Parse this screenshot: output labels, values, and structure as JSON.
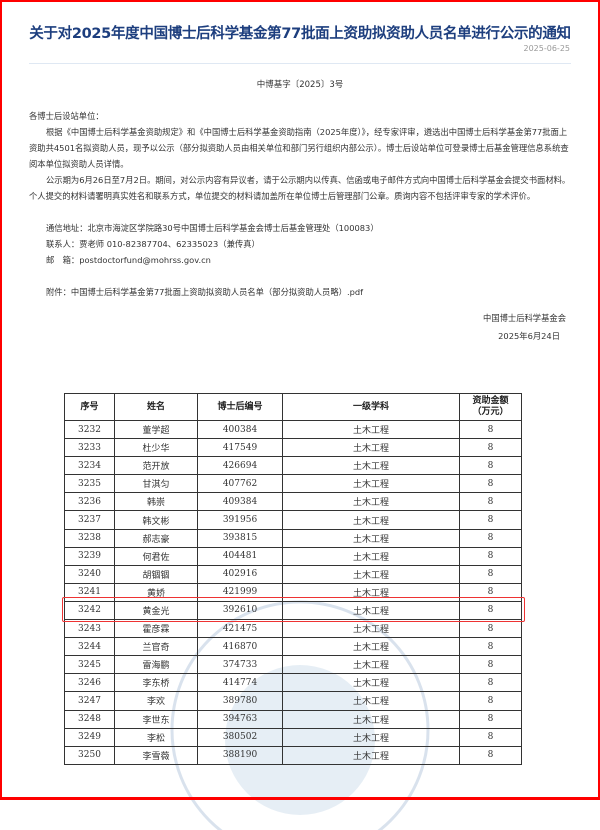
{
  "title": "关于对2025年度中国博士后科学基金第77批面上资助拟资助人员名单进行公示的通知",
  "date": "2025-06-25",
  "doc_number": "中博基字〔2025〕3号",
  "salutation": "各博士后设站单位：",
  "paragraphs": [
    "根据《中国博士后科学基金资助规定》和《中国博士后科学基金资助指南（2025年度）》，经专家评审，遴选出中国博士后科学基金第77批面上资助共4501名拟资助人员，现予以公示（部分拟资助人员由相关单位和部门另行组织内部公示）。博士后设站单位可登录博士后基金管理信息系统查阅本单位拟资助人员详情。",
    "公示期为6月26日至7月2日。期间，对公示内容有异议者，请于公示期内以传真、信函或电子邮件方式向中国博士后科学基金会提交书面材料。个人提交的材料请署明真实姓名和联系方式，单位提交的材料请加盖所在单位博士后管理部门公章。质询内容不包括评审专家的学术评价。"
  ],
  "contact": {
    "address": "通信地址：北京市海淀区学院路30号中国博士后科学基金会博士后基金管理处（100083）",
    "person": "联系人：贾老师 010-82387704、62335023（兼传真）",
    "email": "邮　箱：postdoctorfund@mohrss.gov.cn"
  },
  "attachment": "附件：中国博士后科学基金第77批面上资助拟资助人员名单（部分拟资助人员略）.pdf",
  "signature": {
    "org": "中国博士后科学基金会",
    "date": "2025年6月24日"
  },
  "table": {
    "headers": [
      "序号",
      "姓名",
      "博士后编号",
      "一级学科",
      "资助金额（万元）"
    ],
    "rows": [
      [
        "3232",
        "董学超",
        "400384",
        "土木工程",
        "8"
      ],
      [
        "3233",
        "杜少华",
        "417549",
        "土木工程",
        "8"
      ],
      [
        "3234",
        "范开放",
        "426694",
        "土木工程",
        "8"
      ],
      [
        "3235",
        "甘淇匀",
        "407762",
        "土木工程",
        "8"
      ],
      [
        "3236",
        "韩崇",
        "409384",
        "土木工程",
        "8"
      ],
      [
        "3237",
        "韩文彬",
        "391956",
        "土木工程",
        "8"
      ],
      [
        "3238",
        "郝志豪",
        "393815",
        "土木工程",
        "8"
      ],
      [
        "3239",
        "何君佐",
        "404481",
        "土木工程",
        "8"
      ],
      [
        "3240",
        "胡锢锢",
        "402916",
        "土木工程",
        "8"
      ],
      [
        "3241",
        "黄娇",
        "421999",
        "土木工程",
        "8"
      ],
      [
        "3242",
        "黄金光",
        "392610",
        "土木工程",
        "8"
      ],
      [
        "3243",
        "霍彦霖",
        "421475",
        "土木工程",
        "8"
      ],
      [
        "3244",
        "兰官奇",
        "416870",
        "土木工程",
        "8"
      ],
      [
        "3245",
        "雷海鹏",
        "374733",
        "土木工程",
        "8"
      ],
      [
        "3246",
        "李东桥",
        "414774",
        "土木工程",
        "8"
      ],
      [
        "3247",
        "李欢",
        "389780",
        "土木工程",
        "8"
      ],
      [
        "3248",
        "李世东",
        "394763",
        "土木工程",
        "8"
      ],
      [
        "3249",
        "李松",
        "380502",
        "土木工程",
        "8"
      ],
      [
        "3250",
        "李雪薇",
        "388190",
        "土木工程",
        "8"
      ]
    ],
    "highlighted_row": "3242"
  },
  "colors": {
    "title": "#1d3e7e",
    "highlight": "#e33333",
    "frame": "#ff0000"
  }
}
